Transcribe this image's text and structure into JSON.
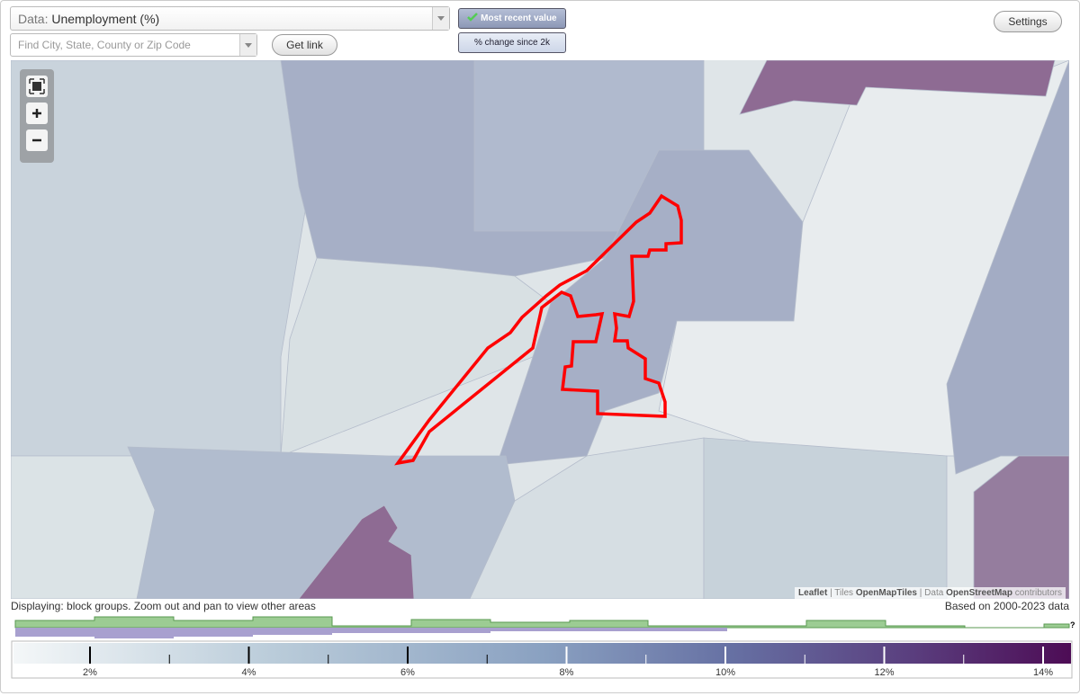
{
  "controls": {
    "data_label": "Data:",
    "data_value": "Unemployment (%)",
    "search_placeholder": "Find City, State, County or Zip Code",
    "get_link": "Get link",
    "most_recent": "Most recent value",
    "pct_change": "% change since 2k",
    "settings": "Settings"
  },
  "attribution": {
    "leaflet": "Leaflet",
    "separator": "|",
    "tiles_prefix": "Tiles",
    "tiles": "OpenMapTiles",
    "data_prefix": "Data",
    "data": "OpenStreetMap",
    "contributors": "contributors"
  },
  "status": {
    "displaying": "Displaying: block groups. Zoom out and pan to view other areas",
    "based_on": "Based on 2000-2023 data"
  },
  "legend": {
    "ticks": [
      "2%",
      "4%",
      "6%",
      "8%",
      "10%",
      "12%",
      "14%"
    ],
    "unknown": "?"
  }
}
